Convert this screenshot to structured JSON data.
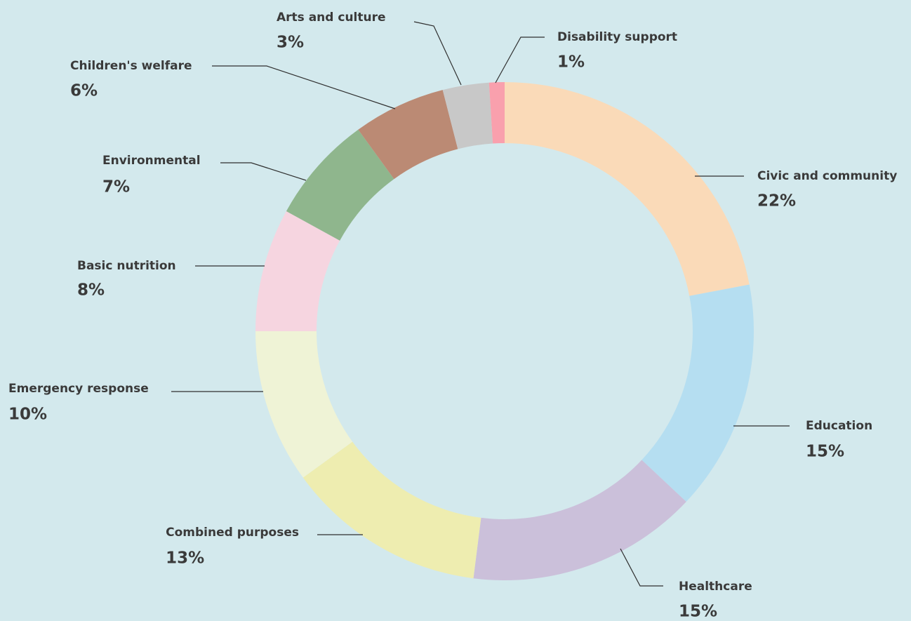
{
  "chart_data": {
    "type": "pie",
    "variant": "donut",
    "slices": [
      {
        "label": "Civic and community",
        "value": 22,
        "value_label": "22%",
        "color": "#fadab8"
      },
      {
        "label": "Education",
        "value": 15,
        "value_label": "15%",
        "color": "#b5def1"
      },
      {
        "label": "Healthcare",
        "value": 15,
        "value_label": "15%",
        "color": "#cbc0da"
      },
      {
        "label": "Combined purposes",
        "value": 13,
        "value_label": "13%",
        "color": "#eeedb0"
      },
      {
        "label": "Emergency response",
        "value": 10,
        "value_label": "10%",
        "color": "#eff3d6"
      },
      {
        "label": "Basic nutrition",
        "value": 8,
        "value_label": "8%",
        "color": "#f6d5e0"
      },
      {
        "label": "Environmental",
        "value": 7,
        "value_label": "7%",
        "color": "#8fb68d"
      },
      {
        "label": "Children's welfare",
        "value": 6,
        "value_label": "6%",
        "color": "#bb8a74"
      },
      {
        "label": "Arts and culture",
        "value": 3,
        "value_label": "3%",
        "color": "#c8c8c8"
      },
      {
        "label": "Disability support",
        "value": 1,
        "value_label": "1%",
        "color": "#f9a0ad"
      }
    ],
    "background_color": "#d3e9ed",
    "label_color": "#3a3a3a"
  }
}
